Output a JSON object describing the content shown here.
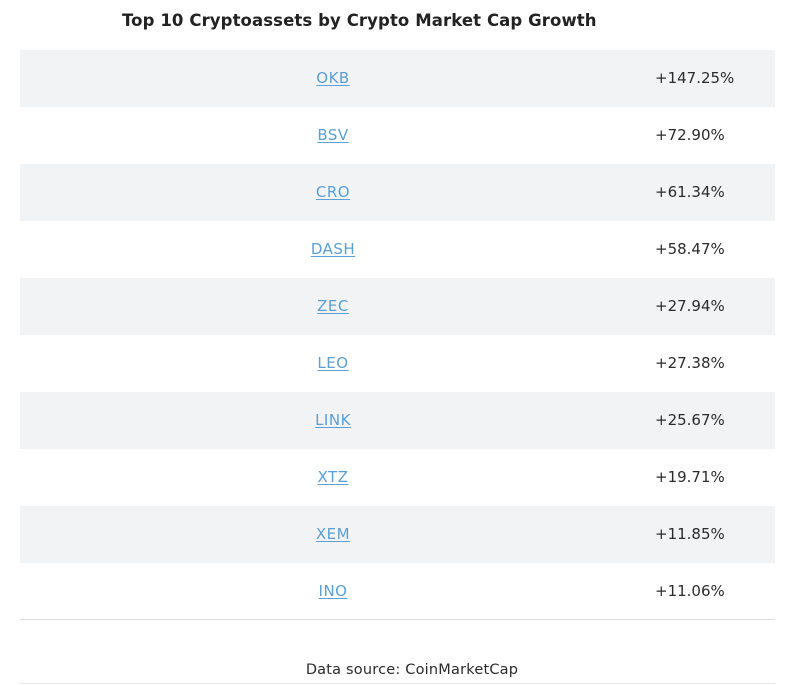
{
  "title": "Top 10 Cryptoassets by Crypto Market Cap Growth",
  "rows": [
    {
      "coin": "OKB",
      "growth": "+147.25%"
    },
    {
      "coin": "BSV",
      "growth": "+72.90%"
    },
    {
      "coin": "CRO",
      "growth": "+61.34%"
    },
    {
      "coin": "DASH",
      "growth": "+58.47%"
    },
    {
      "coin": "ZEC",
      "growth": "+27.94%"
    },
    {
      "coin": "LEO",
      "growth": "+27.38%"
    },
    {
      "coin": "LINK",
      "growth": "+25.67%"
    },
    {
      "coin": "XTZ",
      "growth": "+19.71%"
    },
    {
      "coin": "XEM",
      "growth": "+11.85%"
    },
    {
      "coin": "INO",
      "growth": "+11.06%"
    }
  ],
  "source": "Data source: CoinMarketCap",
  "colors": {
    "link": "#5b9fd4",
    "row_shade": "#f2f3f5",
    "text": "#2b2b2b"
  }
}
